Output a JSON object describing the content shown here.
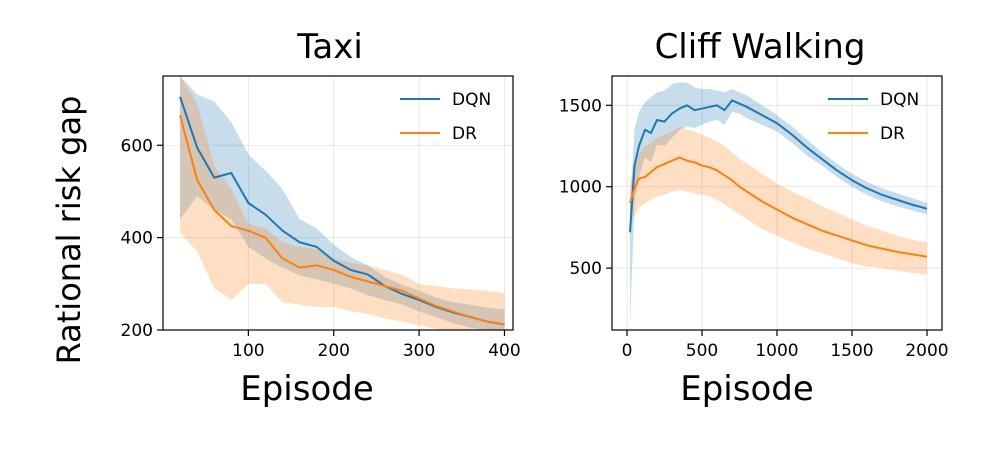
{
  "ylabel": "Rational risk gap",
  "colors": {
    "DQN": "#1f77b4",
    "DR": "#ff7f0e"
  },
  "chart_data": [
    {
      "type": "line",
      "title": "Taxi",
      "xlabel": "Episode",
      "ylabel": "Rational risk gap",
      "xlim": [
        0,
        410
      ],
      "ylim": [
        200,
        750
      ],
      "xticks": [
        100,
        200,
        300,
        400
      ],
      "yticks": [
        200,
        400,
        600
      ],
      "grid": true,
      "legend_position": "top-right",
      "series": [
        {
          "name": "DQN",
          "x": [
            20,
            40,
            60,
            80,
            100,
            120,
            140,
            160,
            180,
            200,
            220,
            240,
            260,
            280,
            300,
            320,
            340,
            360,
            380,
            400
          ],
          "values": [
            705,
            595,
            530,
            540,
            475,
            450,
            415,
            390,
            380,
            350,
            330,
            320,
            295,
            278,
            265,
            250,
            238,
            228,
            218,
            212
          ],
          "upper": [
            780,
            710,
            695,
            650,
            580,
            545,
            505,
            440,
            420,
            385,
            358,
            340,
            315,
            298,
            285,
            270,
            260,
            255,
            248,
            245
          ],
          "lower": [
            440,
            490,
            460,
            440,
            380,
            355,
            335,
            318,
            310,
            300,
            290,
            275,
            265,
            255,
            240,
            228,
            215,
            205,
            198,
            195
          ]
        },
        {
          "name": "DR",
          "x": [
            20,
            40,
            60,
            80,
            100,
            120,
            140,
            160,
            180,
            200,
            220,
            240,
            260,
            280,
            300,
            320,
            340,
            360,
            380,
            400
          ],
          "values": [
            665,
            525,
            460,
            425,
            415,
            400,
            355,
            335,
            340,
            330,
            315,
            305,
            295,
            285,
            268,
            252,
            240,
            228,
            218,
            212
          ],
          "upper": [
            780,
            690,
            555,
            505,
            430,
            420,
            390,
            380,
            375,
            355,
            345,
            340,
            330,
            320,
            300,
            295,
            290,
            288,
            285,
            280
          ],
          "lower": [
            410,
            370,
            290,
            265,
            300,
            300,
            260,
            255,
            250,
            250,
            240,
            235,
            225,
            218,
            210,
            202,
            200,
            200,
            200,
            200
          ]
        }
      ]
    },
    {
      "type": "line",
      "title": "Cliff Walking",
      "xlabel": "Episode",
      "xlim": [
        -100,
        2100
      ],
      "ylim": [
        120,
        1680
      ],
      "xticks": [
        0,
        500,
        1000,
        1500,
        2000
      ],
      "yticks": [
        500,
        1000,
        1500
      ],
      "grid": true,
      "legend_position": "top-right",
      "series": [
        {
          "name": "DQN",
          "x": [
            20,
            50,
            80,
            120,
            160,
            200,
            250,
            300,
            350,
            400,
            450,
            500,
            550,
            600,
            650,
            700,
            750,
            800,
            900,
            1000,
            1100,
            1200,
            1300,
            1400,
            1500,
            1600,
            1700,
            1800,
            1900,
            2000
          ],
          "values": [
            720,
            1130,
            1250,
            1350,
            1330,
            1410,
            1400,
            1450,
            1480,
            1500,
            1470,
            1480,
            1490,
            1500,
            1470,
            1530,
            1510,
            1490,
            1440,
            1390,
            1320,
            1240,
            1170,
            1100,
            1040,
            990,
            950,
            920,
            890,
            865
          ],
          "upper": [
            900,
            1350,
            1460,
            1520,
            1550,
            1580,
            1590,
            1630,
            1640,
            1640,
            1610,
            1600,
            1600,
            1590,
            1580,
            1600,
            1580,
            1560,
            1500,
            1440,
            1370,
            1290,
            1210,
            1140,
            1080,
            1030,
            990,
            960,
            930,
            900
          ],
          "lower": [
            150,
            900,
            1060,
            1180,
            1150,
            1260,
            1250,
            1300,
            1350,
            1370,
            1360,
            1380,
            1400,
            1410,
            1380,
            1460,
            1450,
            1420,
            1380,
            1340,
            1270,
            1190,
            1130,
            1060,
            1000,
            950,
            910,
            880,
            855,
            830
          ]
        },
        {
          "name": "DR",
          "x": [
            20,
            50,
            80,
            120,
            160,
            200,
            250,
            300,
            350,
            400,
            450,
            500,
            550,
            600,
            650,
            700,
            750,
            800,
            900,
            1000,
            1100,
            1200,
            1300,
            1400,
            1500,
            1600,
            1700,
            1800,
            1900,
            2000
          ],
          "values": [
            900,
            990,
            1050,
            1060,
            1090,
            1120,
            1140,
            1160,
            1180,
            1160,
            1150,
            1130,
            1120,
            1100,
            1070,
            1040,
            1000,
            970,
            910,
            860,
            810,
            770,
            730,
            700,
            670,
            640,
            620,
            600,
            585,
            570
          ],
          "upper": [
            1000,
            1150,
            1200,
            1250,
            1270,
            1300,
            1320,
            1340,
            1370,
            1350,
            1340,
            1320,
            1300,
            1280,
            1250,
            1210,
            1170,
            1140,
            1080,
            1020,
            970,
            930,
            880,
            840,
            800,
            760,
            730,
            700,
            675,
            660
          ],
          "lower": [
            800,
            820,
            870,
            900,
            920,
            940,
            950,
            970,
            980,
            970,
            960,
            950,
            940,
            920,
            890,
            860,
            830,
            800,
            740,
            700,
            660,
            620,
            590,
            560,
            530,
            510,
            500,
            485,
            470,
            460
          ]
        }
      ]
    }
  ]
}
